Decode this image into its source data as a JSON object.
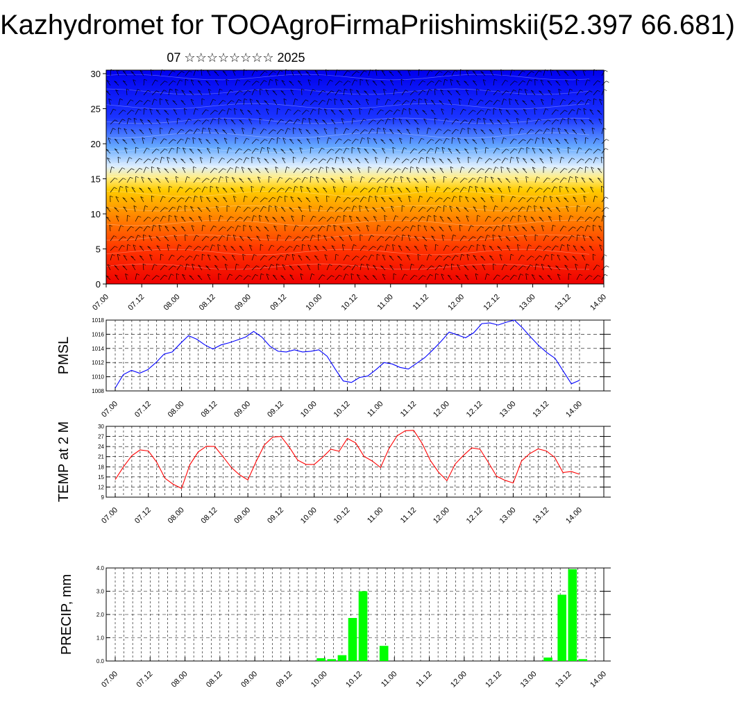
{
  "header": {
    "title": "Kazhydromet for TOOAgroFirmaPriishimskii(52.397 66.681)",
    "subtitle": "07 ☆☆☆☆☆☆☆☆ 2025"
  },
  "colors": {
    "pmsl_line": "#0000ff",
    "temp_line": "#ff0000",
    "precip_bar": "#00ff00",
    "cross_section_cold": "#0000ff",
    "cross_section_warm": "#ff0000"
  },
  "chart_data": [
    {
      "id": "cross-section",
      "type": "heatmap",
      "title": "",
      "xlabel": "",
      "ylabel": "",
      "x_ticks": [
        "07.00",
        "07.12",
        "08.00",
        "08.12",
        "09.00",
        "09.12",
        "10.00",
        "10.12",
        "11.00",
        "11.12",
        "12.00",
        "12.12",
        "13.00",
        "13.12",
        "14.00"
      ],
      "y_ticks": [
        0,
        5,
        10,
        15,
        20,
        25,
        30
      ],
      "ylim": [
        0,
        30.5
      ],
      "colormap": [
        "#0000ff",
        "#ffffff",
        "#ffff00",
        "#ff0000"
      ],
      "grid": false
    },
    {
      "id": "pmsl",
      "type": "line",
      "ylabel": "PMSL",
      "ylim": [
        1008,
        1018
      ],
      "y_ticks": [
        1008,
        1010,
        1012,
        1014,
        1016,
        1018
      ],
      "x_ticks": [
        "07.00",
        "07.12",
        "08.00",
        "08.12",
        "09.00",
        "09.12",
        "10.00",
        "10.12",
        "11.00",
        "11.12",
        "12.00",
        "12.12",
        "13.00",
        "13.12",
        "14.00"
      ],
      "grid": true,
      "values": [
        1008.4,
        1010.3,
        1010.9,
        1010.5,
        1011.0,
        1012.0,
        1013.2,
        1013.5,
        1014.7,
        1015.8,
        1015.3,
        1014.5,
        1013.9,
        1014.5,
        1014.8,
        1015.2,
        1015.6,
        1016.4,
        1015.6,
        1014.3,
        1013.6,
        1013.5,
        1013.8,
        1013.5,
        1013.6,
        1013.8,
        1012.9,
        1011.1,
        1009.4,
        1009.2,
        1009.9,
        1010.1,
        1011.0,
        1012.0,
        1011.8,
        1011.3,
        1011.1,
        1011.9,
        1012.7,
        1013.8,
        1015.0,
        1016.3,
        1015.9,
        1015.5,
        1016.2,
        1017.5,
        1017.6,
        1017.3,
        1017.7,
        1018.0,
        1016.9,
        1015.6,
        1014.4,
        1013.4,
        1012.6,
        1010.8,
        1009.0,
        1009.5
      ],
      "color": "#0000ff"
    },
    {
      "id": "temp",
      "type": "line",
      "ylabel": "TEMP at 2 M",
      "ylim": [
        9,
        30
      ],
      "y_ticks": [
        9,
        12,
        15,
        18,
        21,
        24,
        27,
        30
      ],
      "x_ticks": [
        "07.00",
        "07.12",
        "08.00",
        "08.12",
        "09.00",
        "09.12",
        "10.00",
        "10.12",
        "11.00",
        "11.12",
        "12.00",
        "12.12",
        "13.00",
        "13.12",
        "14.00"
      ],
      "grid": true,
      "values": [
        14.2,
        18.0,
        21.3,
        23.0,
        22.7,
        19.4,
        14.6,
        12.8,
        11.6,
        18.6,
        22.4,
        24.1,
        24.0,
        21.0,
        17.8,
        15.6,
        14.1,
        19.6,
        24.5,
        26.8,
        27.0,
        23.8,
        20.0,
        18.7,
        18.7,
        20.8,
        23.2,
        22.6,
        26.4,
        25.1,
        21.1,
        19.7,
        17.8,
        23.3,
        27.2,
        28.7,
        28.8,
        25.0,
        19.9,
        16.4,
        13.9,
        18.8,
        21.4,
        23.6,
        23.2,
        19.3,
        15.2,
        14.0,
        13.2,
        19.7,
        21.9,
        23.3,
        22.7,
        20.8,
        16.3,
        16.6,
        15.8
      ],
      "color": "#ff0000"
    },
    {
      "id": "precip",
      "type": "bar",
      "ylabel": "PRECIP, mm",
      "ylim": [
        0,
        4.0
      ],
      "y_ticks": [
        "0.0",
        "1.0",
        "2.0",
        "3.0",
        "4.0"
      ],
      "x_ticks": [
        "07.00",
        "07.12",
        "08.00",
        "08.12",
        "09.00",
        "09.12",
        "10.00",
        "10.12",
        "11.00",
        "11.12",
        "12.00",
        "12.12",
        "13.00",
        "13.12",
        "14.00"
      ],
      "grid": true,
      "bars": [
        {
          "x": 9.95,
          "value": 0.12
        },
        {
          "x": 10.1,
          "value": 0.08
        },
        {
          "x": 10.25,
          "value": 0.25
        },
        {
          "x": 10.4,
          "value": 1.85
        },
        {
          "x": 10.55,
          "value": 3.0
        },
        {
          "x": 10.85,
          "value": 0.65
        },
        {
          "x": 13.2,
          "value": 0.15
        },
        {
          "x": 13.4,
          "value": 2.85
        },
        {
          "x": 13.55,
          "value": 3.95
        },
        {
          "x": 13.7,
          "value": 0.08
        }
      ],
      "color": "#00ff00"
    }
  ]
}
